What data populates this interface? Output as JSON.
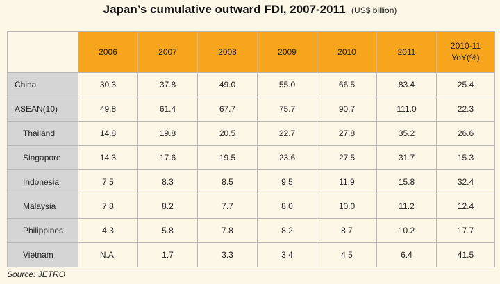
{
  "title": "Japan’s cumulative outward FDI, 2007-2011",
  "subtitle": "(US$ billion)",
  "source": "Source: JETRO",
  "colors": {
    "header": "#f6a51c",
    "label_col": "#d5d5d5",
    "background": "#fdf7e8"
  },
  "chart_data": {
    "type": "table",
    "title": "Japan’s cumulative outward FDI, 2007-2011",
    "subtitle": "(US$ billion)",
    "columns": [
      "2006",
      "2007",
      "2008",
      "2009",
      "2010",
      "2011",
      "2010-11 YoY(%)"
    ],
    "rows": [
      {
        "label": "China",
        "sub": false,
        "values": [
          "30.3",
          "37.8",
          "49.0",
          "55.0",
          "66.5",
          "83.4",
          "25.4"
        ]
      },
      {
        "label": "ASEAN(10)",
        "sub": false,
        "values": [
          "49.8",
          "61.4",
          "67.7",
          "75.7",
          "90.7",
          "111.0",
          "22.3"
        ]
      },
      {
        "label": "Thailand",
        "sub": true,
        "values": [
          "14.8",
          "19.8",
          "20.5",
          "22.7",
          "27.8",
          "35.2",
          "26.6"
        ]
      },
      {
        "label": "Singapore",
        "sub": true,
        "values": [
          "14.3",
          "17.6",
          "19.5",
          "23.6",
          "27.5",
          "31.7",
          "15.3"
        ]
      },
      {
        "label": "Indonesia",
        "sub": true,
        "values": [
          "7.5",
          "8.3",
          "8.5",
          "9.5",
          "11.9",
          "15.8",
          "32.4"
        ]
      },
      {
        "label": "Malaysia",
        "sub": true,
        "values": [
          "7.8",
          "8.2",
          "7.7",
          "8.0",
          "10.0",
          "11.2",
          "12.4"
        ]
      },
      {
        "label": "Philippines",
        "sub": true,
        "values": [
          "4.3",
          "5.8",
          "7.8",
          "8.2",
          "8.7",
          "10.2",
          "17.7"
        ]
      },
      {
        "label": "Vietnam",
        "sub": true,
        "values": [
          "N.A.",
          "1.7",
          "3.3",
          "3.4",
          "4.5",
          "6.4",
          "41.5"
        ]
      }
    ]
  }
}
